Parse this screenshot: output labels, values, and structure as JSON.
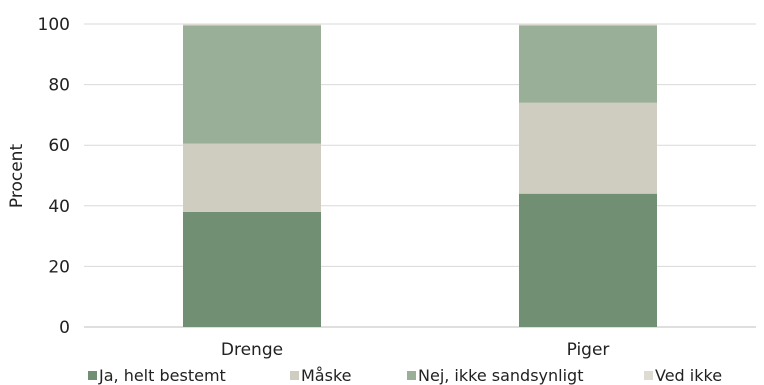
{
  "chart_data": {
    "type": "bar",
    "stacked": true,
    "categories": [
      "Drenge",
      "Piger"
    ],
    "series": [
      {
        "name": "Ja, helt bestemt",
        "values": [
          38,
          44
        ],
        "color": "#718f73"
      },
      {
        "name": "Måske",
        "values": [
          22.5,
          30
        ],
        "color": "#cfccc0"
      },
      {
        "name": "Nej, ikke sandsynligt",
        "values": [
          39,
          25.5
        ],
        "color": "#9aaf97"
      },
      {
        "name": "Ved ikke",
        "values": [
          0.5,
          0.5
        ],
        "color": "#dedbd3"
      }
    ],
    "title": "",
    "xlabel": "",
    "ylabel": "Procent",
    "ylim": [
      0,
      100
    ],
    "yticks": [
      0,
      20,
      40,
      60,
      80,
      100
    ],
    "grid": true,
    "legend_position": "bottom"
  }
}
